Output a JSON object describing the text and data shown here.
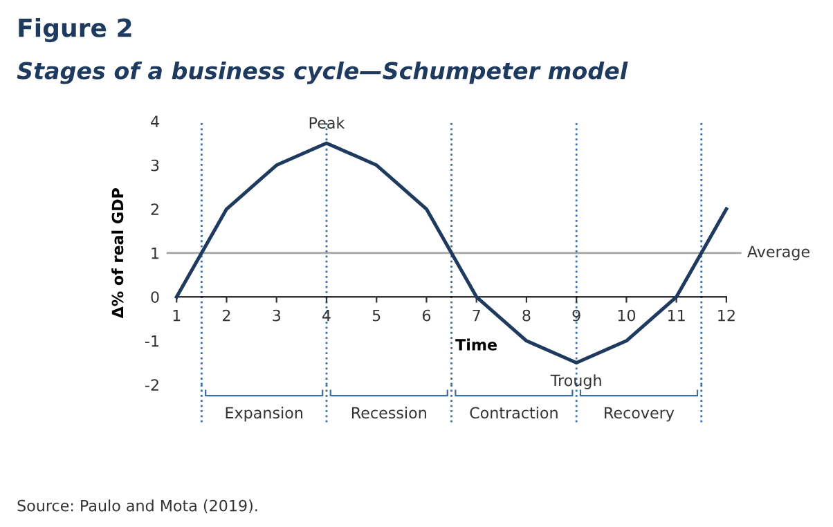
{
  "chart_data": {
    "type": "line",
    "title": "Figure 2",
    "subtitle": "Stages of a business cycle—Schumpeter model",
    "xlabel": "Time",
    "ylabel": "Δ% of real GDP",
    "x": [
      1,
      2,
      3,
      4,
      5,
      6,
      7,
      8,
      9,
      10,
      11,
      12
    ],
    "series": [
      {
        "color": "#1f3a5f",
        "values": [
          0,
          2,
          3,
          3.5,
          3,
          2,
          0,
          -1,
          -1.5,
          -1,
          0,
          2
        ]
      }
    ],
    "xlim": [
      0.8,
      12.3
    ],
    "ylim": [
      -2,
      4
    ],
    "xticks": [
      1,
      2,
      3,
      4,
      5,
      6,
      7,
      8,
      9,
      10,
      11,
      12
    ],
    "yticks": [
      -2,
      -1,
      0,
      1,
      2,
      3,
      4
    ],
    "ref_lines": [
      {
        "axis": "y",
        "value": 1,
        "label": "Average",
        "color": "#aaaaaa",
        "line_style": "solid"
      },
      {
        "axis": "x",
        "value": 1.5,
        "color": "#3a6ea5",
        "line_style": "dotted"
      },
      {
        "axis": "x",
        "value": 4,
        "color": "#3a6ea5",
        "line_style": "dotted"
      },
      {
        "axis": "x",
        "value": 6.5,
        "color": "#3a6ea5",
        "line_style": "dotted"
      },
      {
        "axis": "x",
        "value": 9,
        "color": "#3a6ea5",
        "line_style": "dotted"
      },
      {
        "axis": "x",
        "value": 11.5,
        "color": "#3a6ea5",
        "line_style": "dotted"
      }
    ],
    "annotations": [
      {
        "text": "Peak",
        "x": 4,
        "y": 3.5
      },
      {
        "text": "Trough",
        "x": 9,
        "y": -1.5
      },
      "Expansion",
      "Recession",
      "Contraction",
      "Recovery",
      "Source: Paulo and Mota (2019)."
    ],
    "grid": false,
    "legend": false,
    "marker": "none",
    "line_style": "solid"
  }
}
